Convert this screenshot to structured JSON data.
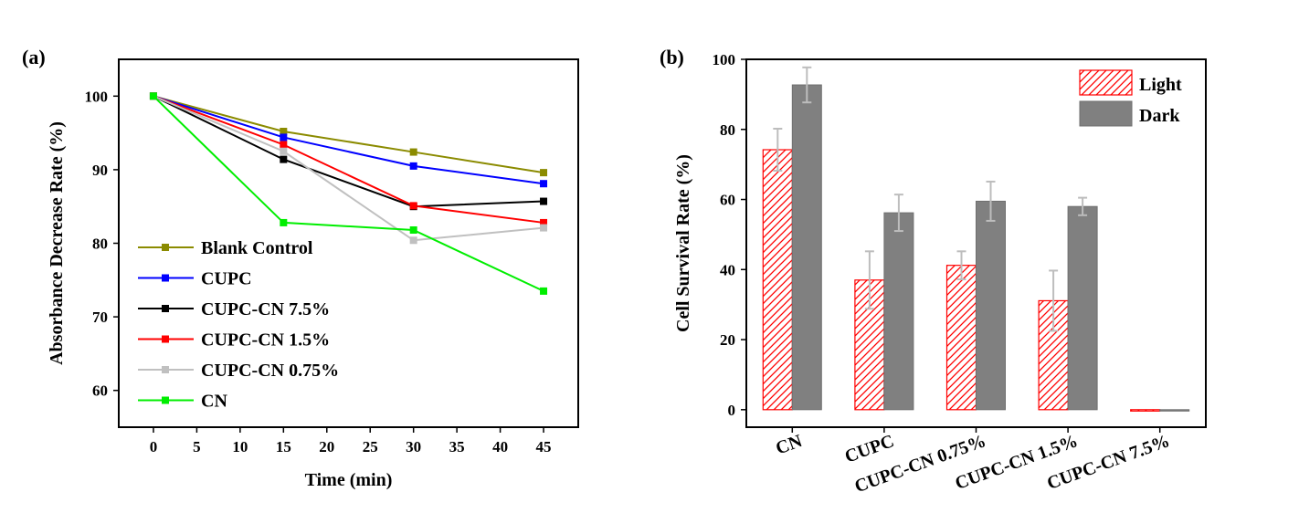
{
  "chart_data": [
    {
      "type": "line",
      "panel_label": "(a)",
      "xlabel": "Time (min)",
      "ylabel": "Absorbance Decrease Rate (%)",
      "xlim": [
        -4,
        49
      ],
      "ylim": [
        55,
        105
      ],
      "xticks": [
        0,
        5,
        10,
        15,
        20,
        25,
        30,
        35,
        40,
        45
      ],
      "yticks": [
        60,
        70,
        80,
        90,
        100
      ],
      "grid": false,
      "legend_position": "bottom-left",
      "x": [
        0,
        15,
        30,
        45
      ],
      "series": [
        {
          "name": "Blank Control",
          "color": "#8B8B00",
          "values": [
            100,
            95.2,
            92.4,
            89.6
          ]
        },
        {
          "name": "CUPC",
          "color": "#0000FF",
          "values": [
            100,
            94.4,
            90.5,
            88.1
          ]
        },
        {
          "name": "CUPC-CN 7.5%",
          "color": "#000000",
          "values": [
            100,
            91.4,
            85.0,
            85.7
          ]
        },
        {
          "name": "CUPC-CN 1.5%",
          "color": "#FF0000",
          "values": [
            100,
            93.4,
            85.1,
            82.8
          ]
        },
        {
          "name": "CUPC-CN 0.75%",
          "color": "#C0C0C0",
          "values": [
            100,
            92.5,
            80.4,
            82.1
          ]
        },
        {
          "name": "CN",
          "color": "#00EE00",
          "values": [
            100,
            82.8,
            81.8,
            73.5
          ]
        }
      ]
    },
    {
      "type": "bar",
      "panel_label": "(b)",
      "xlabel": "",
      "ylabel": "Cell Survival Rate (%)",
      "ylim": [
        -5,
        100
      ],
      "yticks": [
        0,
        20,
        40,
        60,
        80,
        100
      ],
      "grid": false,
      "legend_position": "top-right",
      "categories": [
        "CN",
        "CUPC",
        "CUPC-CN 0.75%",
        "CUPC-CN 1.5%",
        "CUPC-CN 7.5%"
      ],
      "series": [
        {
          "name": "Light",
          "pattern": "hatched",
          "color": "#FF0000",
          "values": [
            74.2,
            37.0,
            41.2,
            31.1,
            0
          ],
          "errors": [
            6.0,
            8.2,
            4.0,
            8.6,
            0
          ]
        },
        {
          "name": "Dark",
          "color": "#808080",
          "values": [
            92.7,
            56.2,
            59.5,
            58.0,
            0
          ],
          "errors": [
            5.0,
            5.2,
            5.6,
            2.5,
            0
          ]
        }
      ]
    }
  ]
}
